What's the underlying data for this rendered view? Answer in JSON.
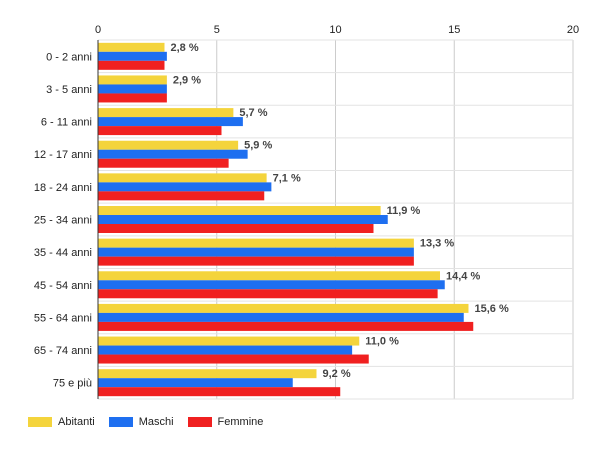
{
  "chart_data": {
    "type": "bar",
    "orientation": "horizontal",
    "categories": [
      "0 - 2 anni",
      "3 - 5 anni",
      "6 - 11 anni",
      "12 - 17 anni",
      "18 - 24 anni",
      "25 - 34 anni",
      "35 - 44 anni",
      "45 - 54 anni",
      "55 - 64 anni",
      "65 - 74 anni",
      "75 e più"
    ],
    "series": [
      {
        "name": "Abitanti",
        "color": "#f4d43c",
        "values": [
          2.8,
          2.9,
          5.7,
          5.9,
          7.1,
          11.9,
          13.3,
          14.4,
          15.6,
          11.0,
          9.2
        ]
      },
      {
        "name": "Maschi",
        "color": "#1e6ff0",
        "values": [
          2.9,
          2.9,
          6.1,
          6.3,
          7.3,
          12.2,
          13.3,
          14.6,
          15.4,
          10.7,
          8.2
        ]
      },
      {
        "name": "Femmine",
        "color": "#f02020",
        "values": [
          2.8,
          2.9,
          5.2,
          5.5,
          7.0,
          11.6,
          13.3,
          14.3,
          15.8,
          11.4,
          10.2
        ]
      }
    ],
    "data_labels": [
      "2,8 %",
      "2,9 %",
      "5,7 %",
      "5,9 %",
      "7,1 %",
      "11,9 %",
      "13,3 %",
      "14,4 %",
      "15,6 %",
      "11,0 %",
      "9,2 %"
    ],
    "x_ticks": [
      "0",
      "5",
      "10",
      "15",
      "20"
    ],
    "xlim": [
      0,
      20
    ],
    "axis_position": "top",
    "grid": true,
    "legend_position": "bottom-left",
    "title": "",
    "xlabel": "",
    "ylabel": ""
  }
}
